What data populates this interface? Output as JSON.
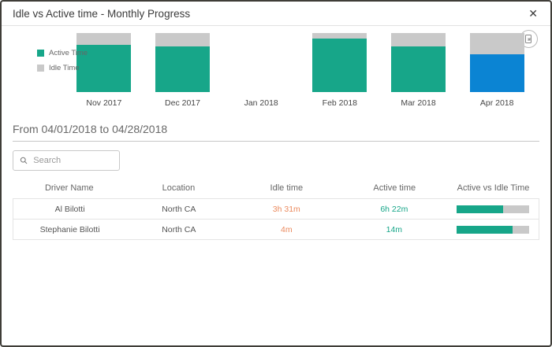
{
  "modal": {
    "title": "Idle vs Active time - Monthly Progress",
    "close_label": "✕"
  },
  "toolbar": {
    "export_icon": "export-report-icon"
  },
  "chart_data": {
    "type": "bar",
    "stacked": true,
    "percent_stacked": true,
    "categories": [
      "Nov 2017",
      "Dec 2017",
      "Jan 2018",
      "Feb 2018",
      "Mar 2018",
      "Apr 2018"
    ],
    "series": [
      {
        "name": "Active Time",
        "color": "#17A689",
        "values": [
          80,
          77,
          null,
          91,
          77,
          64
        ]
      },
      {
        "name": "Idle Time",
        "color": "#C9C9C9",
        "values": [
          20,
          23,
          null,
          9,
          23,
          36
        ]
      }
    ],
    "selected_category": "Apr 2018",
    "selected_active_color": "#0B84D3",
    "legend_position": "left",
    "ylim": [
      0,
      100
    ],
    "title": "",
    "xlabel": "",
    "ylabel": ""
  },
  "filter": {
    "date_range": "From 04/01/2018 to 04/28/2018"
  },
  "search": {
    "placeholder": "Search"
  },
  "table": {
    "columns": [
      "Driver Name",
      "Location",
      "Idle time",
      "Active time",
      "Active vs Idle Time"
    ],
    "rows": [
      {
        "driver": "Al Bilotti",
        "location": "North CA",
        "idle_time": "3h 31m",
        "active_time": "6h 22m",
        "active_pct": 64
      },
      {
        "driver": "Stephanie Bilotti",
        "location": "North CA",
        "idle_time": "4m",
        "active_time": "14m",
        "active_pct": 78
      }
    ]
  },
  "colors": {
    "active": "#17A689",
    "idle_gray": "#C9C9C9",
    "selected_blue": "#0B84D3",
    "idle_text_orange": "#EB8A5E",
    "active_text_teal": "#17A689"
  }
}
